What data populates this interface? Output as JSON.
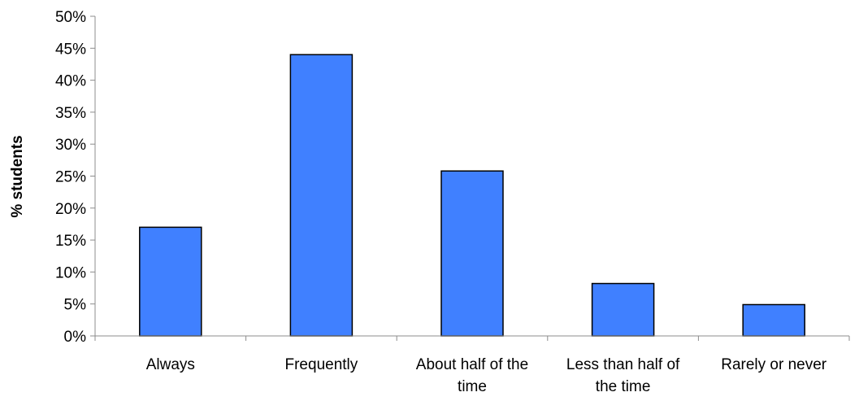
{
  "chart_data": {
    "type": "bar",
    "title": "",
    "xlabel": "",
    "ylabel": "% students",
    "categories": [
      [
        "Always"
      ],
      [
        "Frequently"
      ],
      [
        "About half of the",
        "time"
      ],
      [
        "Less than half of",
        "the time"
      ],
      [
        "Rarely or never"
      ]
    ],
    "values": [
      17,
      44,
      25.8,
      8.2,
      4.9
    ],
    "ylim": [
      0,
      50
    ],
    "yticks": [
      0,
      5,
      10,
      15,
      20,
      25,
      30,
      35,
      40,
      45,
      50
    ],
    "ytick_labels": [
      "0%",
      "5%",
      "10%",
      "15%",
      "20%",
      "25%",
      "30%",
      "35%",
      "40%",
      "45%",
      "50%"
    ],
    "bar_color": "#4080ff",
    "grid": false,
    "legend": "none"
  }
}
